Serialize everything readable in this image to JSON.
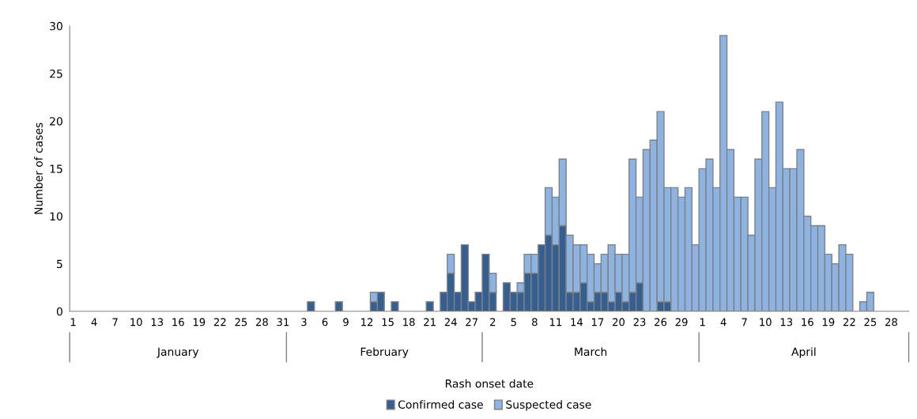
{
  "chart_data": {
    "type": "bar",
    "stacked": true,
    "xlabel": "Rash onset date",
    "ylabel": "Number of cases",
    "categories": [
      "1",
      null,
      null,
      "4",
      null,
      null,
      "7",
      null,
      null,
      "10",
      null,
      null,
      "13",
      null,
      null,
      "16",
      null,
      null,
      "19",
      null,
      null,
      "22",
      null,
      null,
      "25",
      null,
      null,
      "28",
      null,
      null,
      "31",
      null,
      null,
      "3",
      null,
      null,
      "6",
      null,
      null,
      "9",
      null,
      null,
      "12",
      null,
      null,
      "15",
      null,
      null,
      "18",
      null,
      null,
      "21",
      null,
      null,
      "24",
      null,
      null,
      "27",
      null,
      null,
      "2",
      null,
      null,
      "5",
      null,
      null,
      "8",
      null,
      null,
      "11",
      null,
      null,
      "14",
      null,
      null,
      "17",
      null,
      null,
      "20",
      null,
      null,
      "23",
      null,
      null,
      "26",
      null,
      null,
      "29",
      null,
      null,
      "1",
      null,
      null,
      "4",
      null,
      null,
      "7",
      null,
      null,
      "10",
      null,
      null,
      "13",
      null,
      null,
      "16",
      null,
      null,
      "19",
      null,
      null,
      "22",
      null,
      null,
      "25",
      null,
      null,
      "28",
      null,
      null
    ],
    "series": [
      {
        "name": "Confirmed case",
        "color": "#355f91",
        "values": [
          0,
          0,
          0,
          0,
          0,
          0,
          0,
          0,
          0,
          0,
          0,
          0,
          0,
          0,
          0,
          0,
          0,
          0,
          0,
          0,
          0,
          0,
          0,
          0,
          0,
          0,
          0,
          0,
          0,
          0,
          0,
          0,
          0,
          0,
          1,
          0,
          0,
          0,
          1,
          0,
          0,
          0,
          0,
          1,
          2,
          0,
          1,
          0,
          0,
          0,
          0,
          1,
          0,
          2,
          4,
          2,
          7,
          1,
          2,
          6,
          2,
          0,
          3,
          2,
          2,
          4,
          4,
          7,
          8,
          7,
          9,
          2,
          2,
          3,
          1,
          2,
          2,
          1,
          2,
          1,
          2,
          3,
          0,
          0,
          1,
          1,
          0,
          0,
          0,
          0,
          0,
          0,
          0,
          0,
          0,
          0,
          0,
          0,
          0,
          0,
          0,
          0,
          0,
          0,
          0,
          0,
          0,
          0,
          0,
          0,
          0,
          0,
          0,
          0,
          0,
          0,
          0,
          0,
          0,
          0
        ]
      },
      {
        "name": "Suspected case",
        "color": "#8db3e2",
        "values": [
          0,
          0,
          0,
          0,
          0,
          0,
          0,
          0,
          0,
          0,
          0,
          0,
          0,
          0,
          0,
          0,
          0,
          0,
          0,
          0,
          0,
          0,
          0,
          0,
          0,
          0,
          0,
          0,
          0,
          0,
          0,
          0,
          0,
          0,
          0,
          0,
          0,
          0,
          0,
          0,
          0,
          0,
          0,
          1,
          0,
          0,
          0,
          0,
          0,
          0,
          0,
          0,
          0,
          0,
          2,
          0,
          0,
          0,
          0,
          0,
          2,
          0,
          0,
          0,
          1,
          2,
          2,
          0,
          5,
          5,
          7,
          6,
          5,
          4,
          5,
          3,
          4,
          6,
          4,
          5,
          14,
          9,
          17,
          18,
          20,
          12,
          13,
          12,
          13,
          7,
          15,
          16,
          13,
          29,
          17,
          12,
          12,
          8,
          16,
          21,
          13,
          22,
          15,
          15,
          17,
          10,
          9,
          9,
          6,
          5,
          7,
          6,
          0,
          1,
          2,
          0,
          0,
          0,
          0,
          0
        ]
      }
    ],
    "ylim": [
      0,
      30
    ],
    "yticks": [
      0,
      5,
      10,
      15,
      20,
      25,
      30
    ],
    "legend": "bottom",
    "annotations": [
      "January",
      "February",
      "March",
      "April"
    ]
  }
}
